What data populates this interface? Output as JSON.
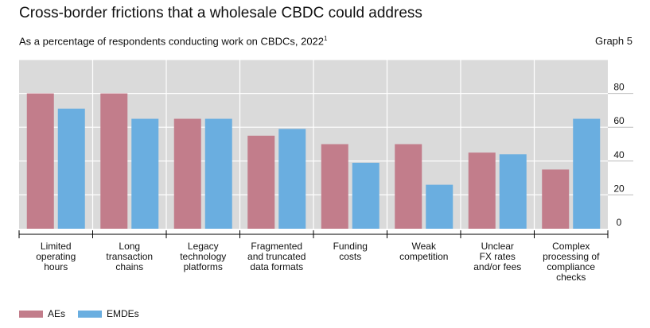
{
  "header": {
    "title": "Cross-border frictions that a wholesale CBDC could address",
    "subtitle": "As a percentage of respondents conducting work on CBDCs, 2022",
    "footnote_marker": "1",
    "graph_label": "Graph 5"
  },
  "legend": [
    {
      "name": "AEs",
      "color": "#c27d8b"
    },
    {
      "name": "EMDEs",
      "color": "#6aaee0"
    }
  ],
  "chart_data": {
    "type": "bar",
    "title": "Cross-border frictions that a wholesale CBDC could address",
    "ylabel": "",
    "xlabel": "",
    "ylim": [
      0,
      100
    ],
    "yticks": [
      0,
      20,
      40,
      60,
      80
    ],
    "y_axis_side": "right",
    "grid": true,
    "categories": [
      [
        "Limited",
        "operating",
        "hours"
      ],
      [
        "Long",
        "transaction",
        "chains"
      ],
      [
        "Legacy",
        "technology",
        "platforms"
      ],
      [
        "Fragmented",
        "and truncated",
        "data formats"
      ],
      [
        "Funding",
        "costs"
      ],
      [
        "Weak",
        "competition"
      ],
      [
        "Unclear",
        "FX rates",
        "and/or fees"
      ],
      [
        "Complex",
        "processing of",
        "compliance",
        "checks"
      ]
    ],
    "series": [
      {
        "name": "AEs",
        "color": "#c27d8b",
        "values": [
          80,
          80,
          65,
          55,
          50,
          50,
          45,
          35
        ]
      },
      {
        "name": "EMDEs",
        "color": "#6aaee0",
        "values": [
          71,
          65,
          65,
          59,
          39,
          26,
          44,
          65
        ]
      }
    ],
    "colors": {
      "plot_background": "#dadada",
      "gridline": "#ffffff"
    }
  }
}
